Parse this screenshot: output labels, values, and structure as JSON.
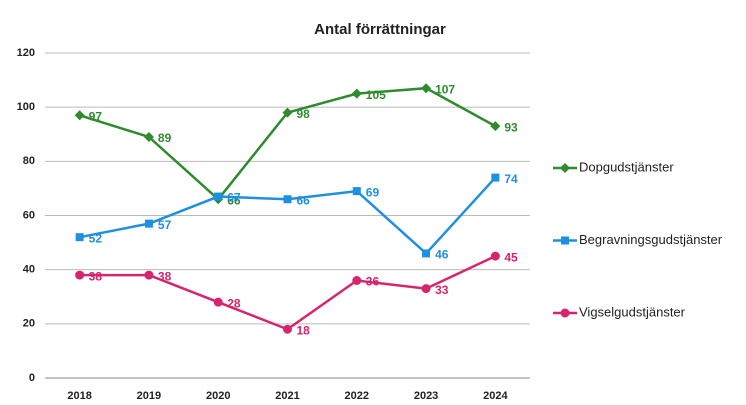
{
  "chart_data": {
    "type": "line",
    "title": "Antal förrättningar",
    "categories": [
      "2018",
      "2019",
      "2020",
      "2021",
      "2022",
      "2023",
      "2024"
    ],
    "series": [
      {
        "name": "Dopgudstjänster",
        "color": "#2e8b2e",
        "marker": "diamond",
        "values": [
          97,
          89,
          66,
          98,
          105,
          107,
          93
        ]
      },
      {
        "name": "Begravningsgudstjänster",
        "color": "#1f8fe0",
        "marker": "square",
        "values": [
          52,
          57,
          67,
          66,
          69,
          46,
          74
        ]
      },
      {
        "name": "Vigselgudstjänster",
        "color": "#d6246e",
        "marker": "circle",
        "values": [
          38,
          38,
          28,
          18,
          36,
          33,
          45
        ]
      }
    ],
    "ylim": [
      0,
      120
    ],
    "yticks": [
      0,
      20,
      40,
      60,
      80,
      100,
      120
    ],
    "grid": true,
    "legend": "right"
  }
}
